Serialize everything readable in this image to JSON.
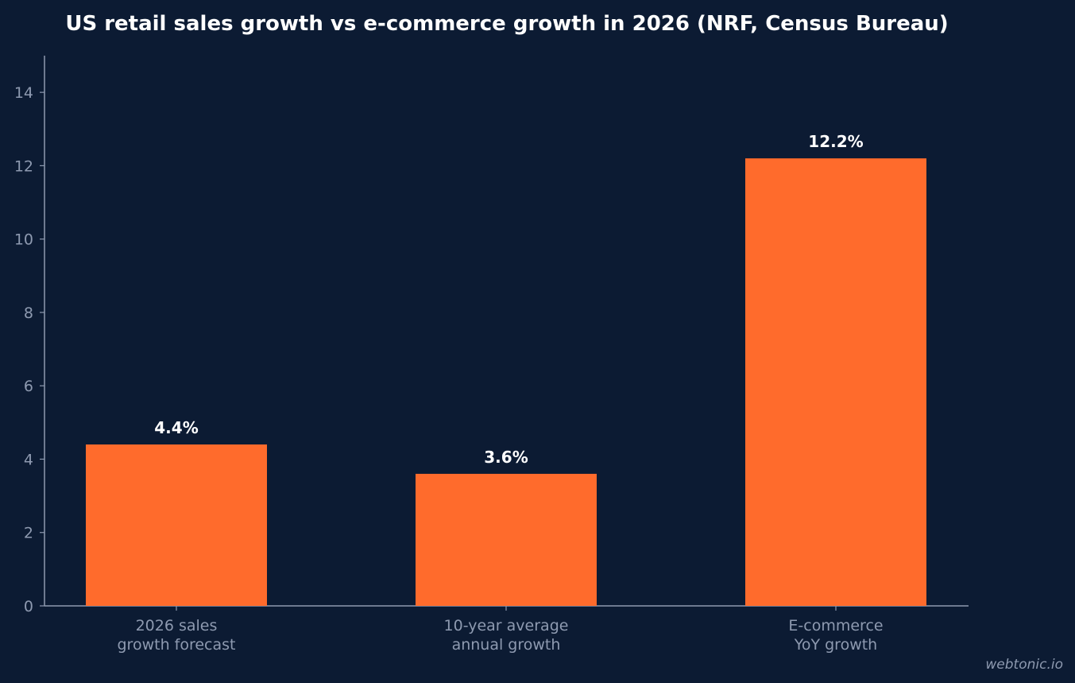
{
  "chart_data": {
    "type": "bar",
    "title": "US retail sales growth vs e-commerce growth in 2026 (NRF, Census Bureau)",
    "xlabel": "",
    "ylabel": "",
    "ylim": [
      0,
      15
    ],
    "yticks": [
      0,
      2,
      4,
      6,
      8,
      10,
      12,
      14
    ],
    "categories": [
      [
        "2026 sales",
        "growth forecast"
      ],
      [
        "10-year average",
        "annual growth"
      ],
      [
        "E-commerce",
        "YoY growth"
      ]
    ],
    "values": [
      4.4,
      3.6,
      12.2
    ],
    "data_labels": [
      "4.4%",
      "3.6%",
      "12.2%"
    ],
    "bar_color": "#ff6b2c",
    "background_color": "#0c1b33",
    "axis_color": "#8e9ab0",
    "grid": false,
    "legend": "none"
  },
  "watermark": "webtonic.io"
}
